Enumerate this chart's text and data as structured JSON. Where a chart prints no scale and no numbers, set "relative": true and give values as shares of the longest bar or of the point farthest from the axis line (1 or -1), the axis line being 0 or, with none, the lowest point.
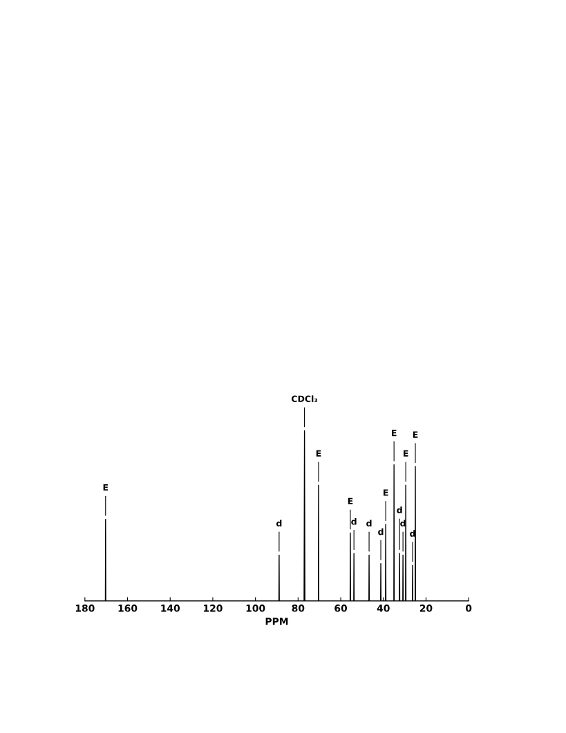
{
  "chart_data": {
    "type": "line",
    "relative": true,
    "xlabel": "PPM",
    "xlim": [
      180,
      0
    ],
    "xticks": [
      180,
      160,
      140,
      120,
      100,
      80,
      60,
      40,
      20,
      0
    ],
    "grid": false,
    "marker": "none",
    "line_style": "solid",
    "series": [
      {
        "color": "#000000",
        "x": [
          180,
          170.4,
          170.3,
          170.2,
          89.0,
          88.9,
          88.8,
          77.2,
          77.0,
          76.8,
          70.5,
          70.4,
          70.3,
          55.6,
          55.5,
          55.4,
          53.9,
          53.8,
          53.7,
          46.8,
          46.7,
          46.6,
          41.3,
          41.2,
          41.1,
          39.0,
          38.9,
          38.8,
          35.1,
          35.0,
          34.9,
          32.5,
          32.4,
          32.3,
          30.9,
          30.8,
          30.7,
          29.6,
          29.5,
          29.4,
          26.4,
          26.3,
          26.2,
          25.1,
          25.0,
          24.9,
          0
        ],
        "values": [
          0,
          0,
          0.48,
          0,
          0,
          0.27,
          0,
          0,
          1,
          0,
          0,
          0.68,
          0,
          0,
          0.4,
          0,
          0,
          0.28,
          0,
          0,
          0.27,
          0,
          0,
          0.22,
          0,
          0,
          0.45,
          0,
          0,
          0.8,
          0,
          0,
          0.28,
          0,
          0,
          0.27,
          0,
          0,
          0.68,
          0,
          0,
          0.21,
          0,
          0,
          0.79,
          0,
          0
        ]
      }
    ],
    "annotations": [
      {
        "text": "CDCl₃",
        "x": 77.0,
        "y": 1
      },
      {
        "text": "E",
        "x": 170.3,
        "y": 0.48
      },
      {
        "text": "d",
        "x": 88.9,
        "y": 0.27
      },
      {
        "text": "E",
        "x": 70.4,
        "y": 0.68
      },
      {
        "text": "E",
        "x": 55.5,
        "y": 0.4
      },
      {
        "text": "d",
        "x": 53.8,
        "y": 0.28
      },
      {
        "text": "d",
        "x": 46.7,
        "y": 0.27
      },
      {
        "text": "d",
        "x": 41.2,
        "y": 0.22
      },
      {
        "text": "E",
        "x": 38.9,
        "y": 0.45
      },
      {
        "text": "E",
        "x": 35.0,
        "y": 0.8
      },
      {
        "text": "d",
        "x": 32.4,
        "y": 0.28
      },
      {
        "text": "d",
        "x": 30.8,
        "y": 0.27
      },
      {
        "text": "E",
        "x": 29.5,
        "y": 0.68
      },
      {
        "text": "d",
        "x": 26.3,
        "y": 0.21
      },
      {
        "text": "E",
        "x": 25.0,
        "y": 0.79
      }
    ]
  }
}
